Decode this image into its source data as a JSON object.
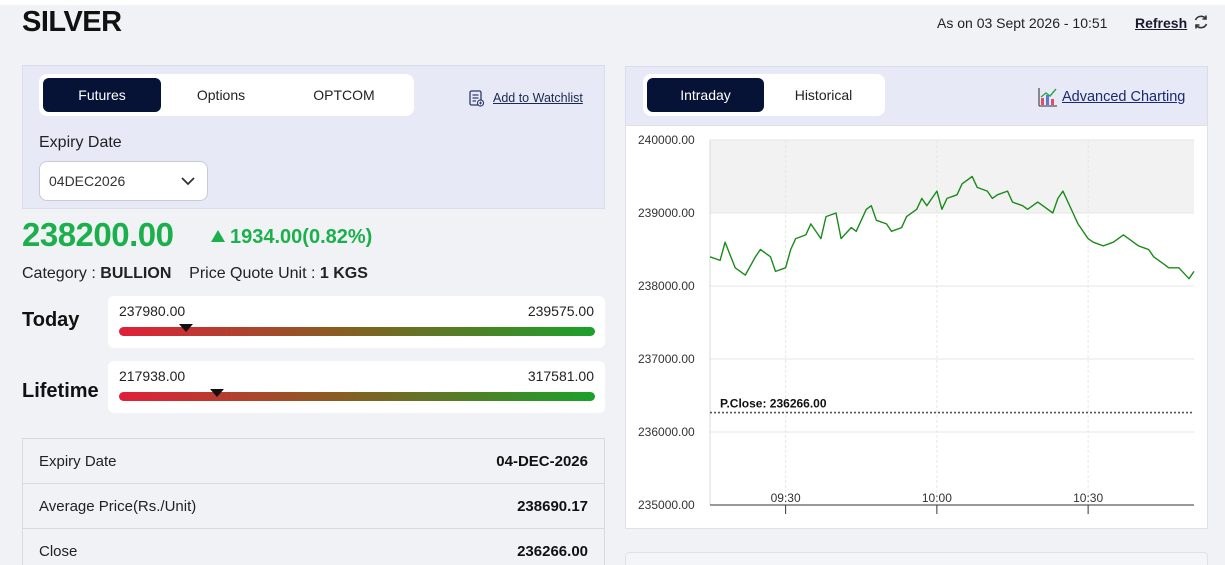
{
  "header": {
    "title": "SILVER",
    "as_on": "As on 03 Sept 2026 - 10:51",
    "refresh_label": "Refresh"
  },
  "contract_tabs": [
    "Futures",
    "Options",
    "OPTCOM"
  ],
  "active_contract_tab": "Futures",
  "watchlist_label": "Add to Watchlist",
  "expiry": {
    "label": "Expiry Date",
    "selected": "04DEC2026"
  },
  "quote": {
    "price": "238200.00",
    "change": "1934.00(0.82%)",
    "direction": "up",
    "color_up": "#1cb04c"
  },
  "meta": {
    "category_label": "Category :",
    "category_value": "BULLION",
    "unit_label": "Price Quote Unit :",
    "unit_value": "1 KGS"
  },
  "ranges": {
    "today": {
      "label": "Today",
      "min": "237980.00",
      "max": "239575.00",
      "marker_fraction": 0.14
    },
    "lifetime": {
      "label": "Lifetime",
      "min": "217938.00",
      "max": "317581.00",
      "marker_fraction": 0.205
    }
  },
  "details": [
    {
      "key": "Expiry Date",
      "value": "04-DEC-2026"
    },
    {
      "key": "Average Price(Rs./Unit)",
      "value": "238690.17"
    },
    {
      "key": "Close",
      "value": "236266.00"
    }
  ],
  "chart_tabs": [
    "Intraday",
    "Historical"
  ],
  "active_chart_tab": "Intraday",
  "advanced_charting_label": "Advanced Charting",
  "chart_data": {
    "type": "line",
    "x_start": "09:15",
    "x_end": "10:51",
    "x_ticks": [
      "09:30",
      "10:00",
      "10:30"
    ],
    "y_ticks": [
      "240000.00",
      "239000.00",
      "238000.00",
      "237000.00",
      "236000.00",
      "235000.00"
    ],
    "ylim": [
      235000,
      240000
    ],
    "reference_line": {
      "label": "P.Close: 236266.00",
      "value": 236266
    },
    "series_color": "#1a8a1a",
    "series": [
      {
        "x": [
          "09:15",
          "09:17",
          "09:18",
          "09:20",
          "09:22",
          "09:24",
          "09:25",
          "09:27",
          "09:28",
          "09:30",
          "09:31",
          "09:32",
          "09:34",
          "09:35",
          "09:37",
          "09:38",
          "09:40",
          "09:41",
          "09:43",
          "09:44",
          "09:46",
          "09:47",
          "09:48",
          "09:50",
          "09:51",
          "09:53",
          "09:54",
          "09:56",
          "09:57",
          "09:58",
          "10:00",
          "10:01",
          "10:02",
          "10:04",
          "10:05",
          "10:07",
          "10:08",
          "10:10",
          "10:11",
          "10:12",
          "10:14",
          "10:15",
          "10:17",
          "10:18",
          "10:20",
          "10:21",
          "10:23",
          "10:24",
          "10:25",
          "10:27",
          "10:28",
          "10:30",
          "10:31",
          "10:33",
          "10:35",
          "10:37",
          "10:38",
          "10:40",
          "10:42",
          "10:43",
          "10:45",
          "10:46",
          "10:48",
          "10:50",
          "10:51"
        ],
        "values": [
          238400,
          238350,
          238600,
          238250,
          238150,
          238400,
          238500,
          238400,
          238200,
          238250,
          238500,
          238650,
          238700,
          238850,
          238650,
          238950,
          239000,
          238650,
          238800,
          238750,
          239050,
          239100,
          238900,
          238850,
          238750,
          238800,
          238950,
          239050,
          239200,
          239100,
          239300,
          239050,
          239200,
          239250,
          239400,
          239500,
          239350,
          239300,
          239200,
          239250,
          239300,
          239150,
          239100,
          239050,
          239150,
          239100,
          239000,
          239200,
          239300,
          239000,
          238850,
          238650,
          238600,
          238550,
          238600,
          238700,
          238650,
          238550,
          238500,
          238400,
          238300,
          238250,
          238250,
          238100,
          238200
        ]
      }
    ],
    "grid": true
  }
}
